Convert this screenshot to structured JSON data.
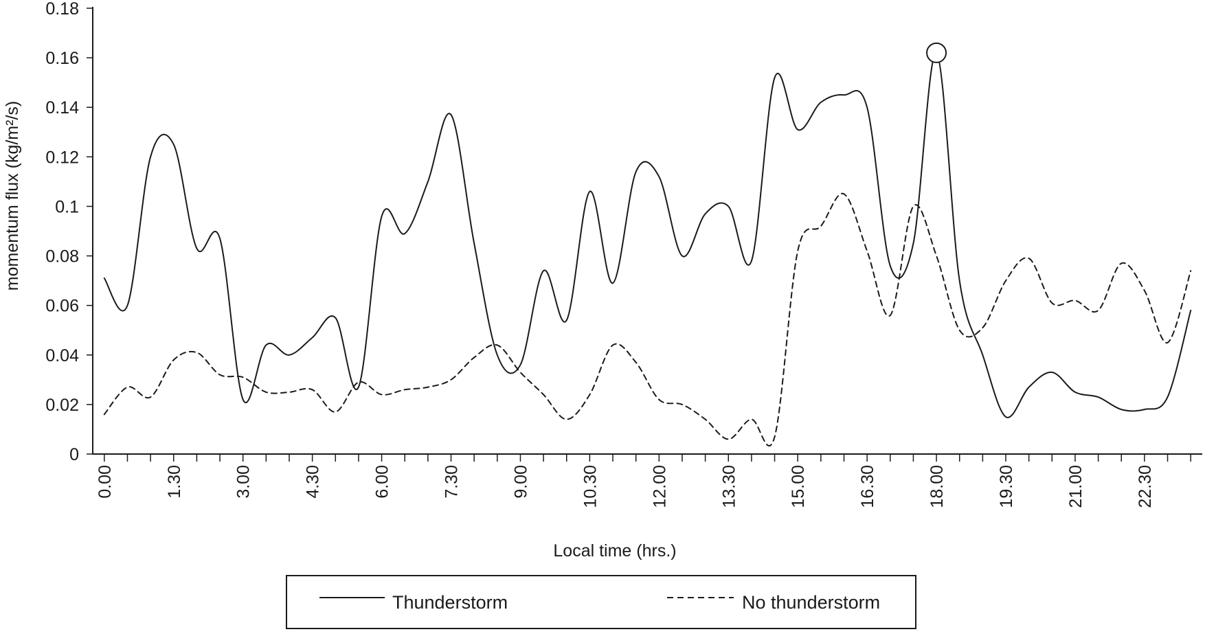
{
  "chart_data": {
    "type": "line",
    "xlabel": "Local time (hrs.)",
    "ylabel": "momentum flux (kg/m²/s)",
    "ylim": [
      0,
      0.18
    ],
    "yticks": [
      0,
      0.02,
      0.04,
      0.06,
      0.08,
      0.1,
      0.12,
      0.14,
      0.16,
      0.18
    ],
    "ytick_labels": [
      "0",
      "0.02",
      "0.04",
      "0.06",
      "0.08",
      "0.1",
      "0.12",
      "0.14",
      "0.16",
      "0.18"
    ],
    "xlim": [
      -0.5,
      47.5
    ],
    "x_label_ticks": [
      0,
      3,
      6,
      9,
      12,
      15,
      18,
      21,
      24,
      27,
      30,
      33,
      36,
      39,
      42,
      45
    ],
    "x_tick_labels": [
      "0.00",
      "1.30",
      "3.00",
      "4.30",
      "6.00",
      "7.30",
      "9.00",
      "10.30",
      "12.00",
      "13.30",
      "15.00",
      "16.30",
      "18.00",
      "19.30",
      "21.00",
      "22.30"
    ],
    "legend_position": "bottom-center",
    "grid": false,
    "highlight": {
      "x": 36,
      "y": 0.162,
      "marker": "open-circle"
    },
    "series": [
      {
        "name": "Thunderstorm",
        "style": "solid",
        "x": [
          0,
          1,
          2,
          3,
          4,
          5,
          6,
          7,
          8,
          9,
          10,
          11,
          12,
          13,
          14,
          15,
          16,
          17,
          18,
          19,
          20,
          21,
          22,
          23,
          24,
          25,
          26,
          27,
          28,
          29,
          30,
          31,
          32,
          33,
          34,
          35,
          36,
          37,
          38,
          39,
          40,
          41,
          42,
          43,
          44,
          45,
          46,
          47
        ],
        "values": [
          0.071,
          0.06,
          0.12,
          0.125,
          0.083,
          0.087,
          0.022,
          0.044,
          0.04,
          0.047,
          0.055,
          0.027,
          0.096,
          0.089,
          0.11,
          0.137,
          0.085,
          0.04,
          0.036,
          0.074,
          0.054,
          0.106,
          0.069,
          0.114,
          0.112,
          0.08,
          0.097,
          0.1,
          0.078,
          0.152,
          0.131,
          0.142,
          0.145,
          0.14,
          0.076,
          0.085,
          0.162,
          0.07,
          0.04,
          0.015,
          0.027,
          0.033,
          0.025,
          0.023,
          0.018,
          0.018,
          0.023,
          0.058
        ]
      },
      {
        "name": "No thunderstorm",
        "style": "dashed",
        "x": [
          0,
          1,
          2,
          3,
          4,
          5,
          6,
          7,
          8,
          9,
          10,
          11,
          12,
          13,
          14,
          15,
          16,
          17,
          18,
          19,
          20,
          21,
          22,
          23,
          24,
          25,
          26,
          27,
          28,
          29,
          30,
          31,
          32,
          33,
          34,
          35,
          36,
          37,
          38,
          39,
          40,
          41,
          42,
          43,
          44,
          45,
          46,
          47
        ],
        "values": [
          0.016,
          0.027,
          0.023,
          0.038,
          0.041,
          0.032,
          0.031,
          0.025,
          0.025,
          0.026,
          0.017,
          0.029,
          0.024,
          0.026,
          0.027,
          0.03,
          0.039,
          0.044,
          0.033,
          0.024,
          0.014,
          0.024,
          0.044,
          0.037,
          0.022,
          0.02,
          0.014,
          0.006,
          0.014,
          0.007,
          0.082,
          0.092,
          0.105,
          0.082,
          0.056,
          0.1,
          0.08,
          0.05,
          0.051,
          0.07,
          0.079,
          0.061,
          0.062,
          0.058,
          0.077,
          0.066,
          0.045,
          0.074
        ]
      }
    ]
  }
}
